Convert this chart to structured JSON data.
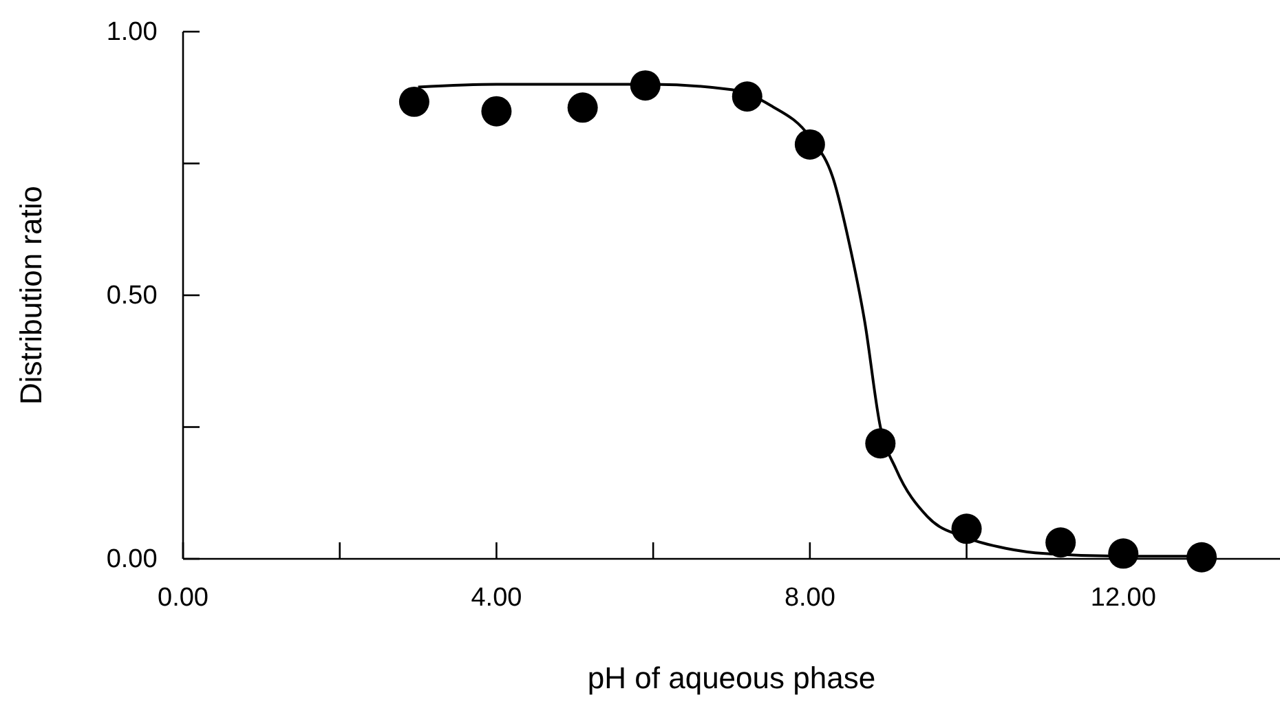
{
  "chart_data": {
    "type": "scatter",
    "xlabel": "pH of aqueous phase",
    "ylabel": "Distribution ratio",
    "xlim": [
      0,
      14
    ],
    "ylim": [
      0,
      1
    ],
    "xticks": [
      {
        "value": 0,
        "label": "0.00"
      },
      {
        "value": 2,
        "label": null
      },
      {
        "value": 4,
        "label": "4.00"
      },
      {
        "value": 6,
        "label": null
      },
      {
        "value": 8,
        "label": "8.00"
      },
      {
        "value": 10,
        "label": null
      },
      {
        "value": 12,
        "label": "12.00"
      }
    ],
    "yticks": [
      {
        "value": 0,
        "label": "0.00"
      },
      {
        "value": 0.25,
        "label": null
      },
      {
        "value": 0.5,
        "label": "0.50"
      },
      {
        "value": 0.75,
        "label": null
      },
      {
        "value": 1,
        "label": "1.00"
      }
    ],
    "grid": false,
    "series": [
      {
        "marker": "circle",
        "color": "#000000",
        "x": [
          2.95,
          4.0,
          5.1,
          5.9,
          7.2,
          8.0,
          8.9,
          10.0,
          11.2,
          12.0,
          13.0
        ],
        "values": [
          0.867,
          0.849,
          0.856,
          0.898,
          0.877,
          0.786,
          0.219,
          0.057,
          0.031,
          0.01,
          0.003
        ]
      },
      {
        "type": "line",
        "color": "#000000",
        "line_style": "solid",
        "x": [
          3,
          4,
          5,
          6,
          7,
          7.5,
          8,
          8.3,
          8.5,
          8.7,
          8.9,
          9.1,
          9.5,
          10,
          10.5,
          11,
          12,
          13
        ],
        "values": [
          0.895,
          0.9,
          0.9,
          0.9,
          0.89,
          0.86,
          0.8,
          0.72,
          0.6,
          0.45,
          0.25,
          0.17,
          0.08,
          0.04,
          0.02,
          0.01,
          0.005,
          0.005
        ]
      }
    ]
  }
}
